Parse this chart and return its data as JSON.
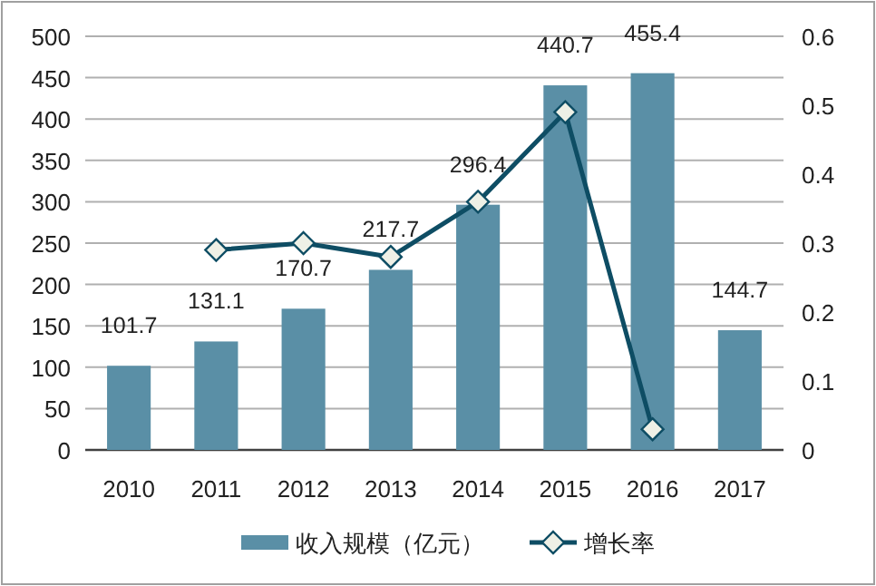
{
  "chart_data": {
    "type": "bar",
    "categories": [
      "2010",
      "2011",
      "2012",
      "2013",
      "2014",
      "2015",
      "2016",
      "2017"
    ],
    "series": [
      {
        "name": "收入规模（亿元）",
        "color": "#5a8fa6",
        "values": [
          101.7,
          131.1,
          170.7,
          217.7,
          296.4,
          440.7,
          455.4,
          144.7
        ],
        "value_labels": [
          "101.7",
          "131.1",
          "170.7",
          "217.7",
          "296.4",
          "440.7",
          "455.4",
          "144.7"
        ]
      },
      {
        "name": "增长率",
        "type": "line",
        "axis": "y2",
        "color": "#0e4d64",
        "values": [
          null,
          0.29,
          0.3,
          0.28,
          0.36,
          0.49,
          0.03,
          null
        ]
      }
    ],
    "ylim": [
      0,
      500
    ],
    "yticks": [
      0,
      50,
      100,
      150,
      200,
      250,
      300,
      350,
      400,
      450,
      500
    ],
    "y2lim": [
      0,
      0.6
    ],
    "y2ticks": [
      0,
      0.1,
      0.2,
      0.3,
      0.4,
      0.5,
      0.6
    ],
    "grid": "y",
    "legend": "bottom",
    "marker": "diamond"
  }
}
